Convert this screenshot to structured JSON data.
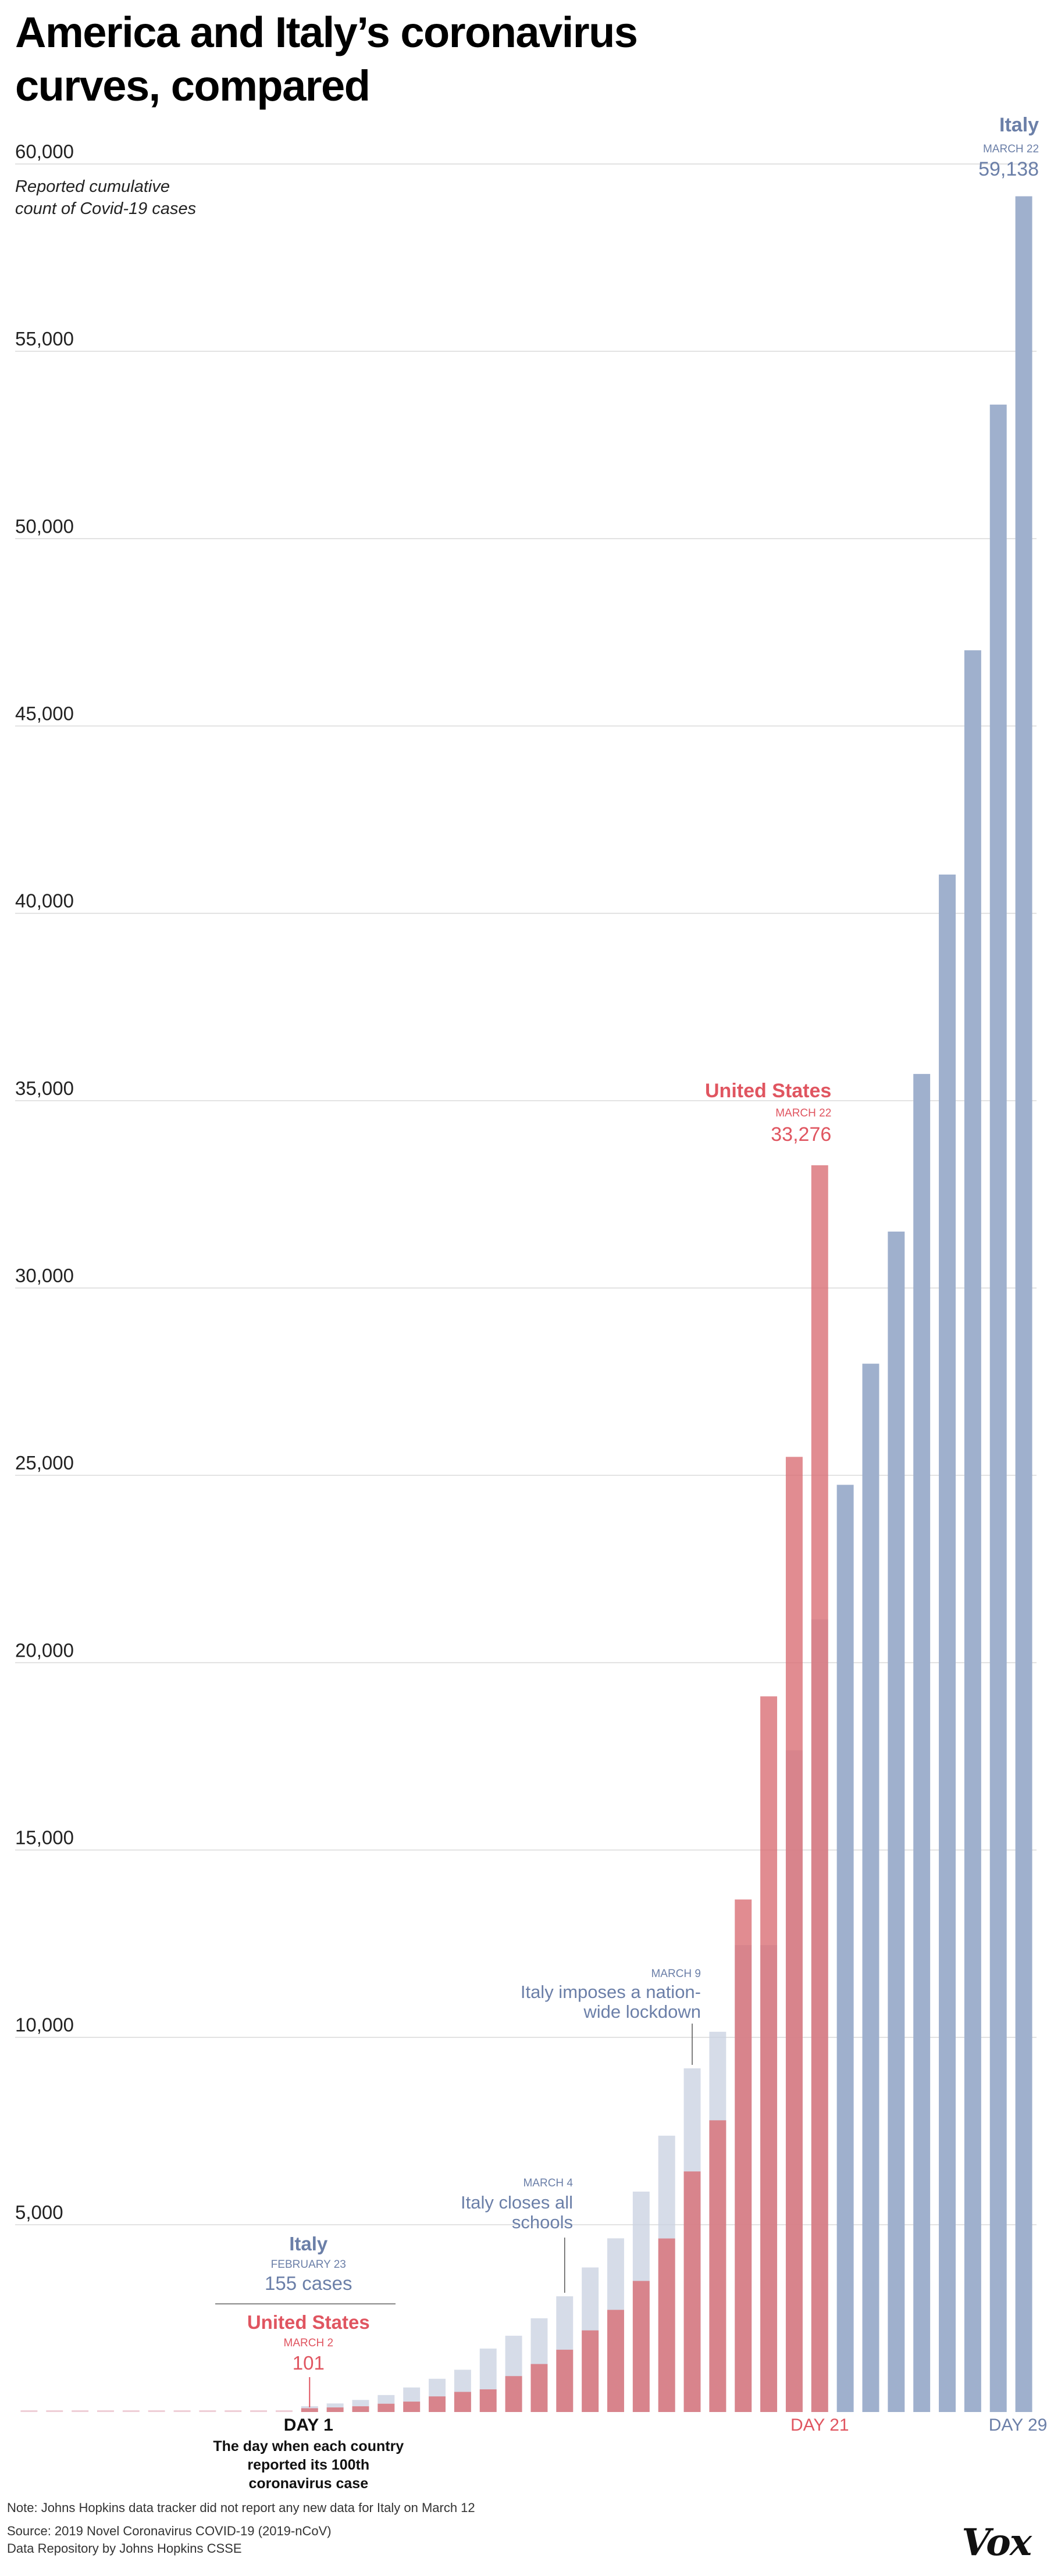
{
  "title": "America and Italy’s coronavirus curves, compared",
  "footer": {
    "note": "Note: Johns Hopkins data tracker did not report any new data for Italy on March 12",
    "source1": "Source: 2019 Novel Coronavirus COVID-19 (2019-nCoV)",
    "source2": "Data Repository by Johns Hopkins CSSE",
    "logo": "Vox"
  },
  "colors": {
    "italy": "#9fb0cd",
    "italy_light": "#c8d0e0",
    "us": "#e88a90",
    "us_dark": "#d96b72",
    "italy_text": "#6b7fa8",
    "us_text": "#e05560",
    "grid": "#d9d9d9"
  },
  "chart_data": {
    "type": "bar",
    "title": "America and Italy’s coronavirus curves, compared",
    "ylabel": "Reported cumulative count of Covid-19 cases",
    "subtitle_lines": [
      "Reported cumulative",
      "count of Covid-19 cases"
    ],
    "ylim": [
      0,
      60000
    ],
    "yticks": [
      5000,
      10000,
      15000,
      20000,
      25000,
      30000,
      35000,
      40000,
      45000,
      50000,
      55000,
      60000
    ],
    "ytick_labels": [
      "5,000",
      "10,000",
      "15,000",
      "20,000",
      "25,000",
      "30,000",
      "35,000",
      "40,000",
      "45,000",
      "50,000",
      "55,000",
      "60,000"
    ],
    "x_label_day1": "DAY 1",
    "x_label_day21": "DAY 21",
    "x_label_day29": "DAY 29",
    "day1_caption": [
      "The day when each country",
      "reported its 100th",
      "coronavirus case"
    ],
    "series": [
      {
        "name": "Italy",
        "start_day_index": 11,
        "values": [
          155,
          229,
          322,
          453,
          655,
          888,
          1128,
          1694,
          2036,
          2502,
          3089,
          3858,
          4636,
          5883,
          7375,
          9172,
          10149,
          12462,
          12462,
          17660,
          21157,
          24747,
          27980,
          31506,
          35713,
          41035,
          47021,
          53578,
          59138
        ]
      },
      {
        "name": "United States",
        "start_day_index": 11,
        "values": [
          101,
          122,
          153,
          221,
          278,
          417,
          537,
          605,
          959,
          1281,
          1663,
          2179,
          2727,
          3499,
          4632,
          6421,
          7786,
          13680,
          19101,
          25493,
          33276
        ]
      }
    ],
    "pre_days": 11,
    "annotations": {
      "italy_end": {
        "name": "Italy",
        "date": "MARCH  22",
        "value": "59,138"
      },
      "us_end": {
        "name": "United States",
        "date": "MARCH  22",
        "value": "33,276"
      },
      "italy_start": {
        "name": "Italy",
        "date": "FEBRUARY 23",
        "value": "155 cases"
      },
      "us_start": {
        "name": "United States",
        "date": "MARCH 2",
        "value": "101"
      },
      "schools": {
        "date": "MARCH 4",
        "text": [
          "Italy closes all",
          "schools"
        ]
      },
      "lockdown": {
        "date": "MARCH 9",
        "text": [
          "Italy imposes a nation-",
          "wide lockdown"
        ]
      }
    }
  }
}
